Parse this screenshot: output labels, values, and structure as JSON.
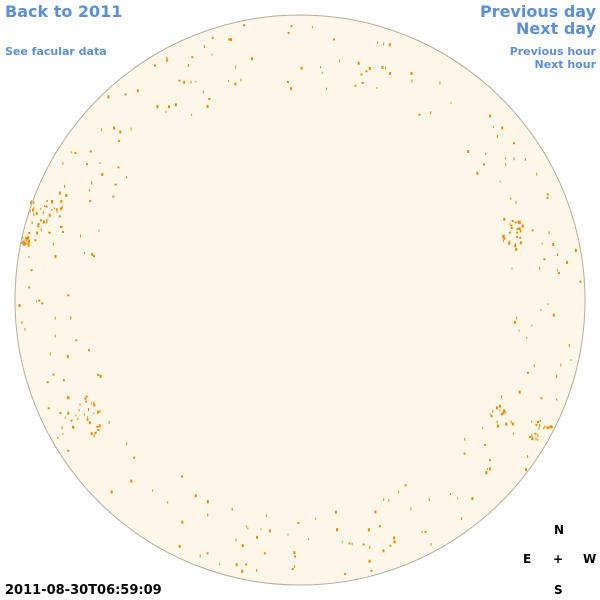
{
  "nav": {
    "back": "Back to 2011",
    "facular": "See facular data",
    "previous_day": "Previous day",
    "next_day": "Next day",
    "previous_hour": "Previous hour",
    "next_hour": "Next hour"
  },
  "timestamp": "2011-08-30T06:59:09",
  "compass": {
    "north": "N",
    "east": "E",
    "center": "+",
    "west": "W",
    "south": "S"
  }
}
